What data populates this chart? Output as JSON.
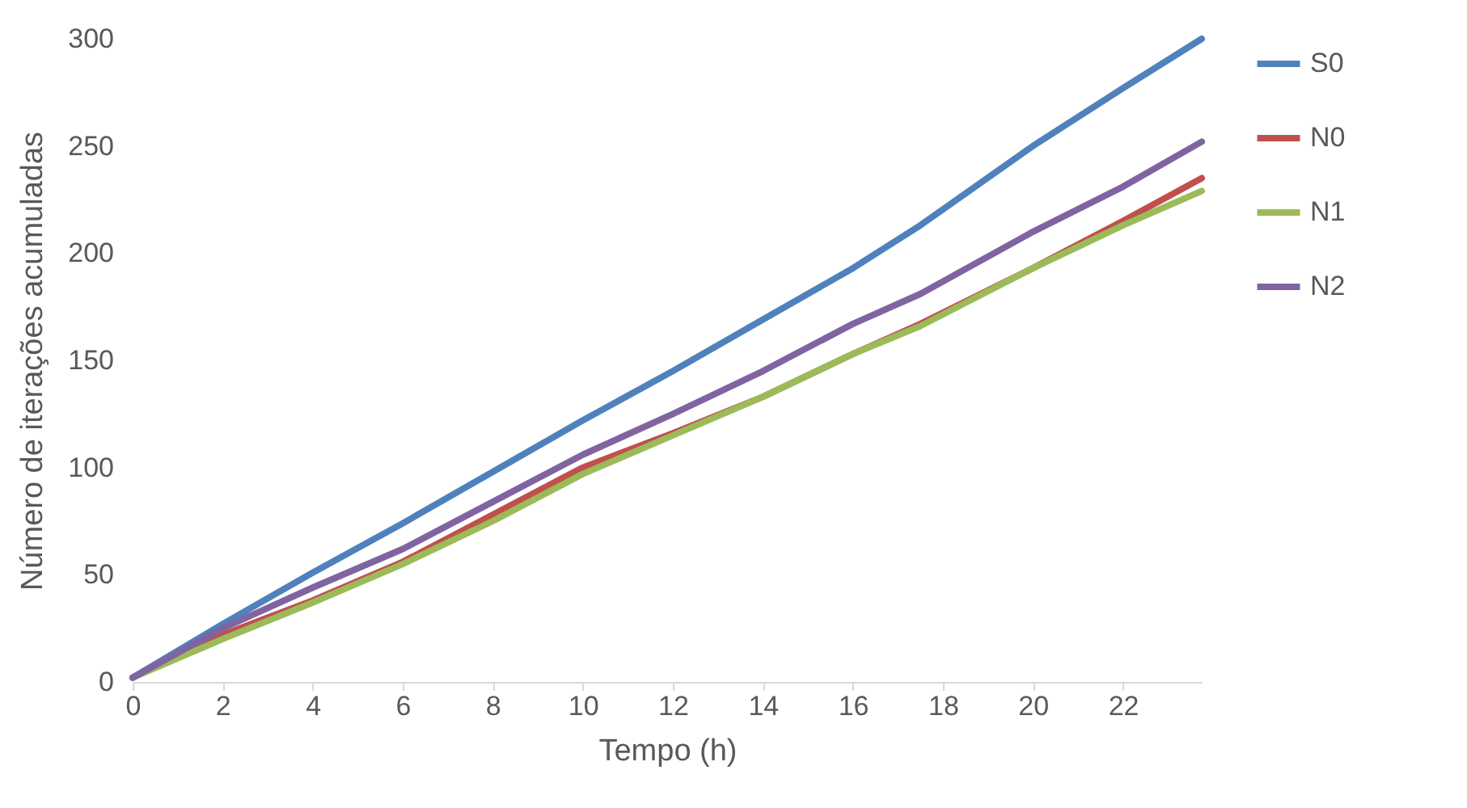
{
  "chart_data": {
    "type": "line",
    "xlabel": "Tempo (h)",
    "ylabel": "Número de iterações acumuladas",
    "x": [
      0,
      2,
      4,
      6,
      8,
      10,
      12,
      14,
      16,
      17.5,
      20,
      22,
      23.75
    ],
    "series": [
      {
        "name": "S0",
        "color": "#4f81bd",
        "values": [
          2,
          27,
          51,
          74,
          98,
          122,
          145,
          169,
          193,
          213,
          250,
          277,
          300
        ]
      },
      {
        "name": "N0",
        "color": "#c0504d",
        "values": [
          2,
          22,
          38,
          56,
          78,
          100,
          116,
          133,
          153,
          167,
          193,
          215,
          235
        ]
      },
      {
        "name": "N1",
        "color": "#9bbb59",
        "values": [
          2,
          20,
          37,
          55,
          75,
          97,
          115,
          133,
          153,
          166,
          193,
          213,
          229
        ]
      },
      {
        "name": "N2",
        "color": "#8064a2",
        "values": [
          2,
          25,
          44,
          62,
          84,
          106,
          125,
          145,
          167,
          181,
          210,
          231,
          252
        ]
      }
    ],
    "xlim": [
      0,
      23.75
    ],
    "xticks": [
      0,
      2,
      4,
      6,
      8,
      10,
      12,
      14,
      16,
      18,
      20,
      22
    ],
    "ylim": [
      0,
      300
    ],
    "yticks": [
      0,
      50,
      100,
      150,
      200,
      250,
      300
    ],
    "grid": false,
    "legend": "right",
    "line_style": "solid",
    "marker": "none"
  }
}
